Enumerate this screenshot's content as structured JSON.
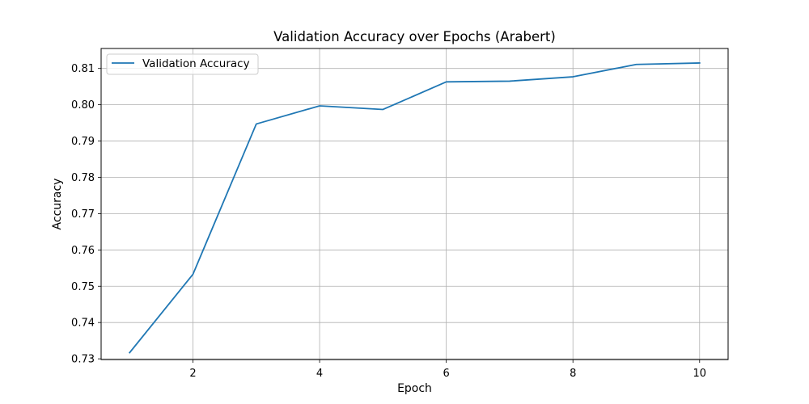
{
  "chart_data": {
    "type": "line",
    "title": "Validation Accuracy over Epochs (Arabert)",
    "xlabel": "Epoch",
    "ylabel": "Accuracy",
    "x": [
      1,
      2,
      3,
      4,
      5,
      6,
      7,
      8,
      9,
      10
    ],
    "series": [
      {
        "name": "Validation Accuracy",
        "color": "#1f77b4",
        "values": [
          0.7317,
          0.7533,
          0.7947,
          0.7997,
          0.7987,
          0.8063,
          0.8065,
          0.8077,
          0.8111,
          0.8115
        ]
      }
    ],
    "xticks": [
      2,
      4,
      6,
      8,
      10
    ],
    "yticks": [
      0.73,
      0.74,
      0.75,
      0.76,
      0.77,
      0.78,
      0.79,
      0.8,
      0.81
    ],
    "xtick_labels": [
      "2",
      "4",
      "6",
      "8",
      "10"
    ],
    "ytick_labels": [
      "0.73",
      "0.74",
      "0.75",
      "0.76",
      "0.77",
      "0.78",
      "0.79",
      "0.80",
      "0.81"
    ],
    "xlim": [
      0.55,
      10.45
    ],
    "ylim": [
      0.7298,
      0.8155
    ],
    "grid": true,
    "legend": "upper-left"
  }
}
